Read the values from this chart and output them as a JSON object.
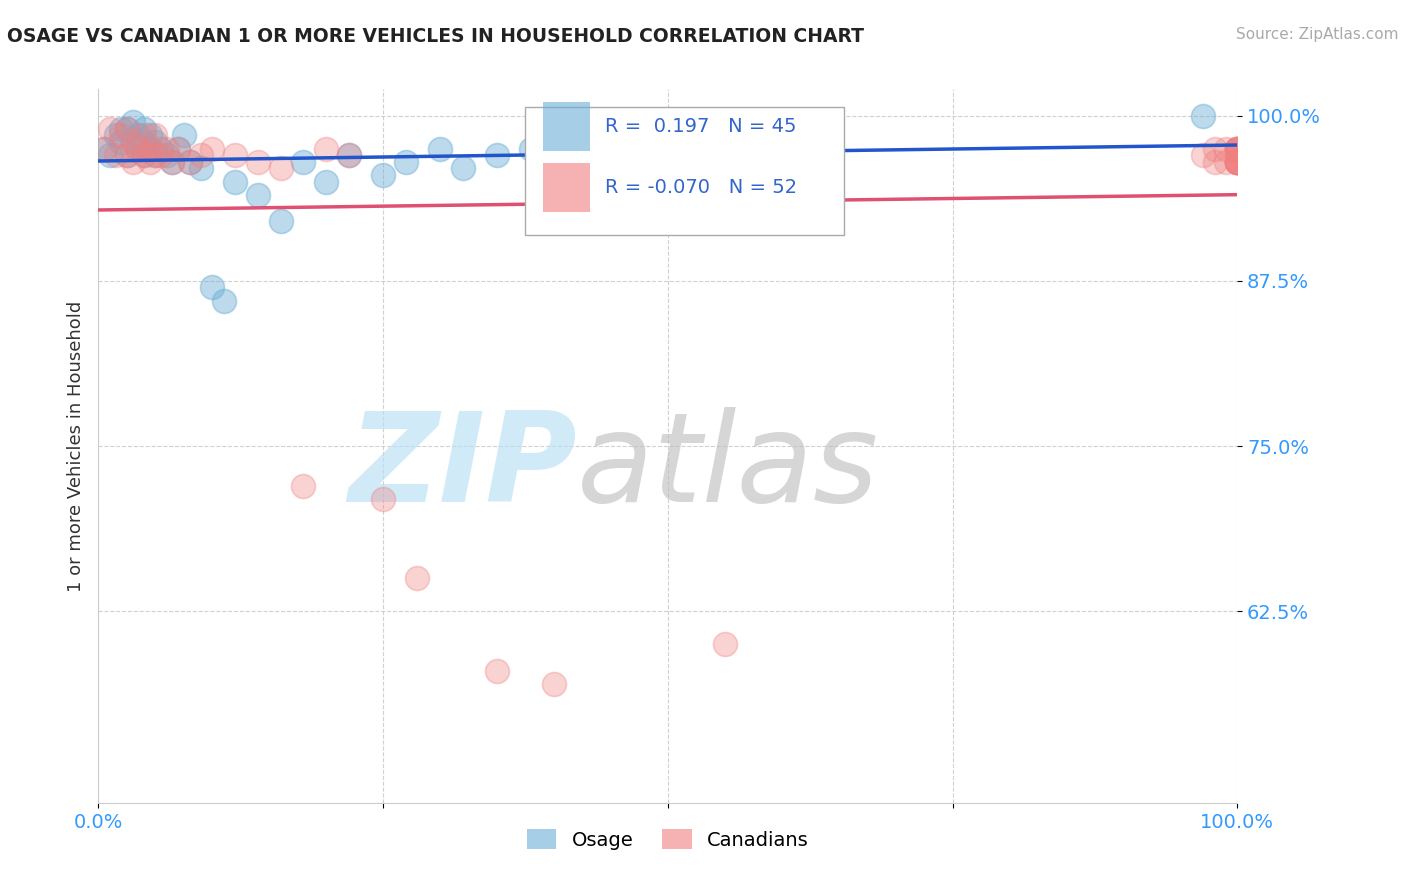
{
  "title": "OSAGE VS CANADIAN 1 OR MORE VEHICLES IN HOUSEHOLD CORRELATION CHART",
  "source": "Source: ZipAtlas.com",
  "ylabel": "1 or more Vehicles in Household",
  "xlim": [
    0.0,
    1.0
  ],
  "ylim": [
    0.48,
    1.02
  ],
  "ytick_positions": [
    0.625,
    0.75,
    0.875,
    1.0
  ],
  "yticklabels": [
    "62.5%",
    "75.0%",
    "87.5%",
    "100.0%"
  ],
  "osage_color": "#6baed6",
  "canadians_color": "#f08080",
  "osage_trend_color": "#2255cc",
  "canadians_trend_color": "#e05070",
  "osage_R": 0.197,
  "osage_N": 45,
  "canadians_R": -0.07,
  "canadians_N": 52,
  "legend_label_osage": "Osage",
  "legend_label_canadians": "Canadians",
  "osage_x": [
    0.005,
    0.01,
    0.015,
    0.02,
    0.02,
    0.025,
    0.025,
    0.03,
    0.03,
    0.035,
    0.035,
    0.04,
    0.04,
    0.04,
    0.045,
    0.045,
    0.05,
    0.05,
    0.055,
    0.06,
    0.065,
    0.07,
    0.075,
    0.08,
    0.09,
    0.1,
    0.11,
    0.12,
    0.14,
    0.16,
    0.18,
    0.2,
    0.22,
    0.25,
    0.27,
    0.3,
    0.32,
    0.35,
    0.38,
    0.4,
    0.42,
    0.45,
    0.5,
    0.55,
    0.97
  ],
  "osage_y": [
    0.975,
    0.97,
    0.985,
    0.99,
    0.98,
    0.97,
    0.99,
    0.98,
    0.995,
    0.975,
    0.985,
    0.97,
    0.98,
    0.99,
    0.975,
    0.985,
    0.97,
    0.98,
    0.975,
    0.97,
    0.965,
    0.975,
    0.985,
    0.965,
    0.96,
    0.87,
    0.86,
    0.95,
    0.94,
    0.92,
    0.965,
    0.95,
    0.97,
    0.955,
    0.965,
    0.975,
    0.96,
    0.97,
    0.975,
    0.97,
    0.98,
    0.975,
    0.98,
    0.975,
    1.0
  ],
  "canadians_x": [
    0.005,
    0.01,
    0.015,
    0.02,
    0.025,
    0.025,
    0.03,
    0.03,
    0.035,
    0.04,
    0.04,
    0.045,
    0.045,
    0.05,
    0.05,
    0.055,
    0.06,
    0.065,
    0.07,
    0.08,
    0.09,
    0.1,
    0.12,
    0.14,
    0.16,
    0.18,
    0.2,
    0.22,
    0.25,
    0.28,
    0.35,
    0.4,
    0.5,
    0.55,
    0.97,
    0.98,
    0.98,
    0.99,
    0.99,
    1.0,
    1.0,
    1.0,
    1.0,
    1.0,
    1.0,
    1.0,
    1.0,
    1.0,
    1.0,
    1.0,
    1.0,
    1.0
  ],
  "canadians_y": [
    0.975,
    0.99,
    0.97,
    0.985,
    0.97,
    0.99,
    0.965,
    0.98,
    0.975,
    0.97,
    0.985,
    0.965,
    0.975,
    0.97,
    0.985,
    0.97,
    0.975,
    0.965,
    0.975,
    0.965,
    0.97,
    0.975,
    0.97,
    0.965,
    0.96,
    0.72,
    0.975,
    0.97,
    0.71,
    0.65,
    0.58,
    0.57,
    0.975,
    0.6,
    0.97,
    0.965,
    0.975,
    0.965,
    0.975,
    0.965,
    0.975,
    0.965,
    0.975,
    0.965,
    0.975,
    0.965,
    0.975,
    0.965,
    0.975,
    0.965,
    0.965,
    0.975
  ]
}
